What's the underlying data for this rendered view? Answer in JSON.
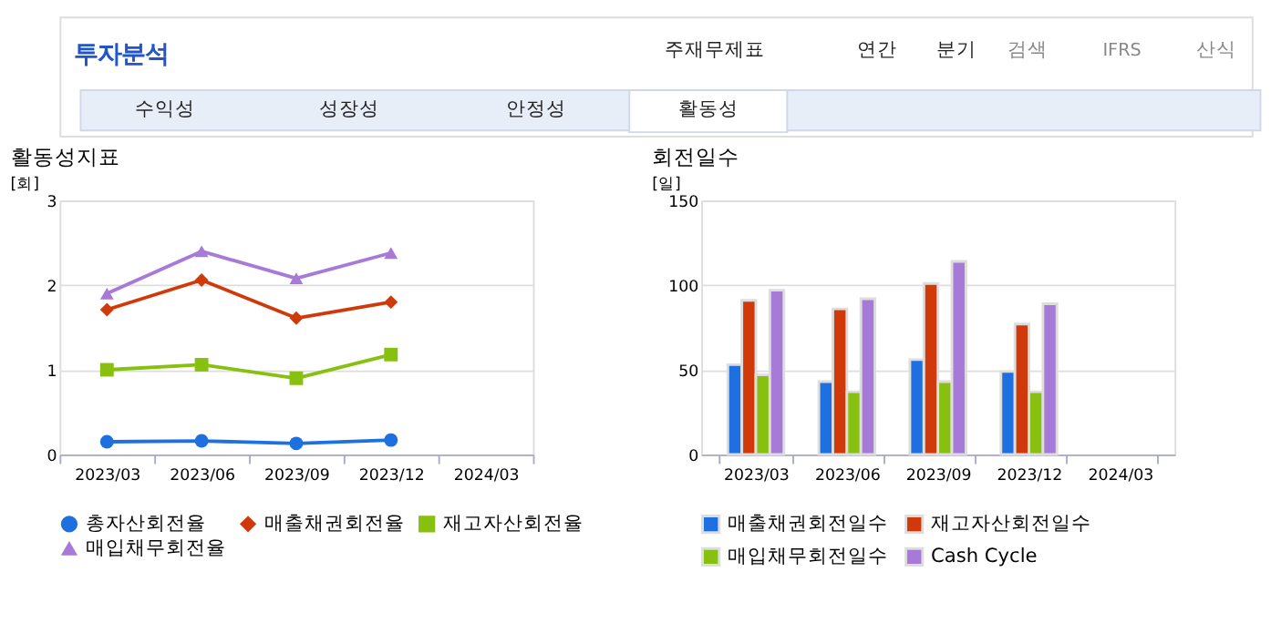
{
  "chart_data": [
    {
      "type": "line",
      "title": "활동성지표",
      "ylabel": "[회]",
      "annotations": [
        "투자분석",
        "주재무제표",
        "연간",
        "분기",
        "검색",
        "IFRS",
        "산식",
        "수익성",
        "성장성",
        "안정성",
        "활동성"
      ],
      "categories": [
        "2023/03",
        "2023/06",
        "2023/09",
        "2023/12",
        "2024/03"
      ],
      "series": [
        {
          "name": "총자산회전율",
          "color": "#1e6fe0",
          "marker": "circle",
          "values": [
            0.15,
            0.16,
            0.13,
            0.17,
            null
          ]
        },
        {
          "name": "매출채권회전율",
          "color": "#d03a0a",
          "marker": "diamond",
          "values": [
            1.71,
            2.06,
            1.61,
            1.8,
            null
          ]
        },
        {
          "name": "재고자산회전율",
          "color": "#88c010",
          "marker": "square",
          "values": [
            1.0,
            1.06,
            0.9,
            1.18,
            null
          ]
        },
        {
          "name": "매입채무회전율",
          "color": "#a77ad8",
          "marker": "triangle",
          "values": [
            1.9,
            2.4,
            2.08,
            2.38,
            null
          ]
        }
      ],
      "ylim": [
        0,
        3
      ],
      "yticks": [
        0,
        1,
        2,
        3
      ],
      "grid": "y",
      "legend": "bottom"
    },
    {
      "type": "bar",
      "title": "회전일수",
      "ylabel": "[일]",
      "categories": [
        "2023/03",
        "2023/06",
        "2023/09",
        "2023/12",
        "2024/03"
      ],
      "series": [
        {
          "name": "매출채권회전일수",
          "color": "#1e6fe0",
          "values": [
            53,
            43,
            56,
            49,
            null
          ]
        },
        {
          "name": "재고자산회전일수",
          "color": "#d03a0a",
          "values": [
            91,
            86,
            101,
            77,
            null
          ]
        },
        {
          "name": "매입채무회전일수",
          "color": "#88c010",
          "values": [
            47,
            37,
            43,
            37,
            null
          ]
        },
        {
          "name": "Cash Cycle",
          "color": "#a77ad8",
          "values": [
            97,
            92,
            114,
            89,
            null
          ]
        }
      ],
      "ylim": [
        0,
        150
      ],
      "yticks": [
        0,
        50,
        100,
        150
      ],
      "grid": "y",
      "legend": "bottom"
    }
  ]
}
